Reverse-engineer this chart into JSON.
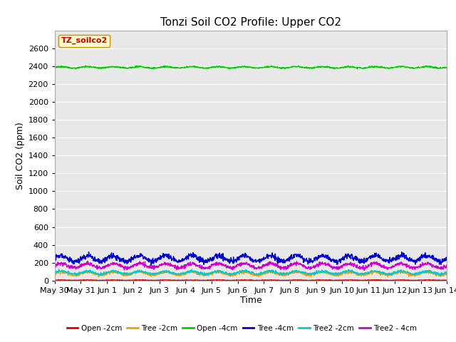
{
  "title": "Tonzi Soil CO2 Profile: Upper CO2",
  "xlabel": "Time",
  "ylabel": "Soil CO2 (ppm)",
  "ylim": [
    0,
    2800
  ],
  "yticks": [
    0,
    200,
    400,
    600,
    800,
    1000,
    1200,
    1400,
    1600,
    1800,
    2000,
    2200,
    2400,
    2600
  ],
  "background_color": "#e8e8e8",
  "legend_label": "TZ_soilco2",
  "legend_box_color": "#ffffcc",
  "legend_box_edge": "#cc8800",
  "legend_text_color": "#cc0000",
  "tick_labels": [
    "May 30",
    "May 31",
    "Jun 1",
    "Jun 2",
    "Jun 3",
    "Jun 4",
    "Jun 5",
    "Jun 6",
    "Jun 7",
    "Jun 8",
    "Jun 9",
    "Jun 10",
    "Jun 11",
    "Jun 12",
    "Jun 13",
    "Jun 14"
  ],
  "series": [
    {
      "name": "Open -2cm",
      "color": "#dd0000"
    },
    {
      "name": "Tree -2cm",
      "color": "#ff9900"
    },
    {
      "name": "Open -4cm",
      "color": "#00cc00"
    },
    {
      "name": "Tree -4cm",
      "color": "#0000cc"
    },
    {
      "name": "Tree2 -2cm",
      "color": "#00cccc"
    },
    {
      "name": "Tree2 - 4cm",
      "color": "#cc00cc"
    }
  ],
  "title_fontsize": 11,
  "axis_label_fontsize": 9,
  "tick_fontsize": 8,
  "grid_color": "#ffffff",
  "spine_color": "#aaaaaa"
}
